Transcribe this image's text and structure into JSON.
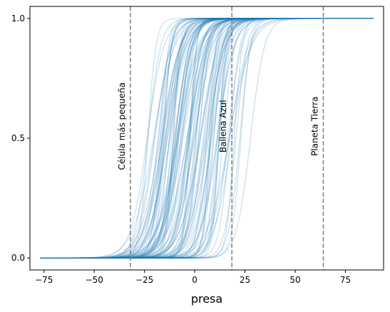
{
  "chart_data": {
    "type": "line",
    "xlabel": "presa",
    "ylabel": "",
    "xlim": [
      -82,
      94
    ],
    "ylim": [
      -0.05,
      1.05
    ],
    "xticks": [
      "−75",
      "−50",
      "−25",
      "0",
      "25",
      "50",
      "75"
    ],
    "xtick_values": [
      -75,
      -50,
      -25,
      0,
      25,
      50,
      75
    ],
    "yticks": [
      "0.0",
      "0.5",
      "1.0"
    ],
    "ytick_values": [
      0,
      0.5,
      1
    ],
    "grid": false,
    "line_color": "#1f77b4",
    "line_alpha": 0.2,
    "n_curves": 100,
    "curves_x_range": [
      -77,
      89
    ],
    "midpoint_range": [
      -25,
      28
    ],
    "vlines": [
      {
        "x": -32,
        "label": "Célula más pequeña"
      },
      {
        "x": 18.5,
        "label": "Ballena Azul"
      },
      {
        "x": 64,
        "label": "Planeta Tierra"
      }
    ],
    "vline_color": "#7f7f7f"
  }
}
